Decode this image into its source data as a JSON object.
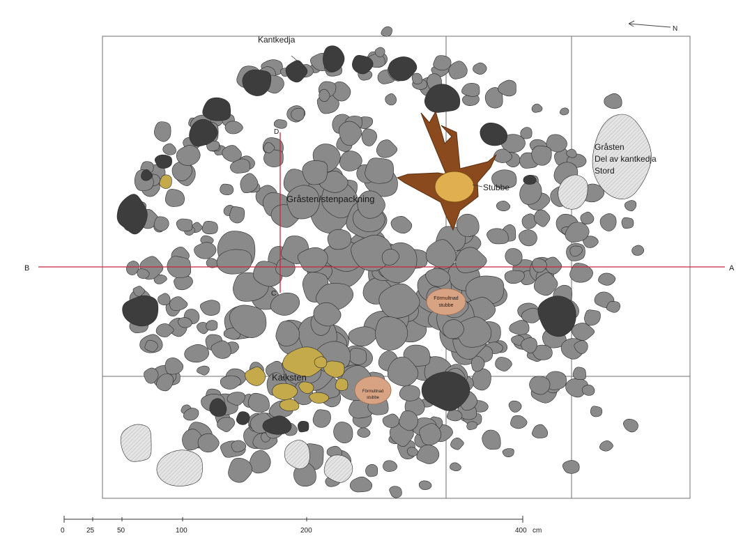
{
  "north_label": "N",
  "section_labels": {
    "a": "A",
    "b": "B",
    "c": "C",
    "d": "D"
  },
  "labels": {
    "kantkedja": "Kantkedja",
    "stenpackning": "Gråsten/stenpackning",
    "stubbe": "Stubbe",
    "grasten_line1": "Gråsten",
    "grasten_line2": "Del av kantkedja",
    "grasten_line3": "Stord",
    "formultnad_line1": "Förmultnad",
    "formultnad_line2": "stubbe",
    "formultnad2_line1": "Förmultnad",
    "formultnad2_line2": "stubbe",
    "kalksten": "Kalksten"
  },
  "scale": {
    "unit": "cm",
    "ticks": [
      "0",
      "25",
      "50",
      "100",
      "200",
      "400"
    ]
  },
  "colors": {
    "stone": "#8a8a8a",
    "dark_stone": "#3d3d3d",
    "light_stone": "#dedede",
    "limestone": "#c4aa4a",
    "stump": "#8b4a1e",
    "stump_core": "#e0b050",
    "decayed_stump": "#d8a383",
    "section_line": "#c8283c"
  }
}
